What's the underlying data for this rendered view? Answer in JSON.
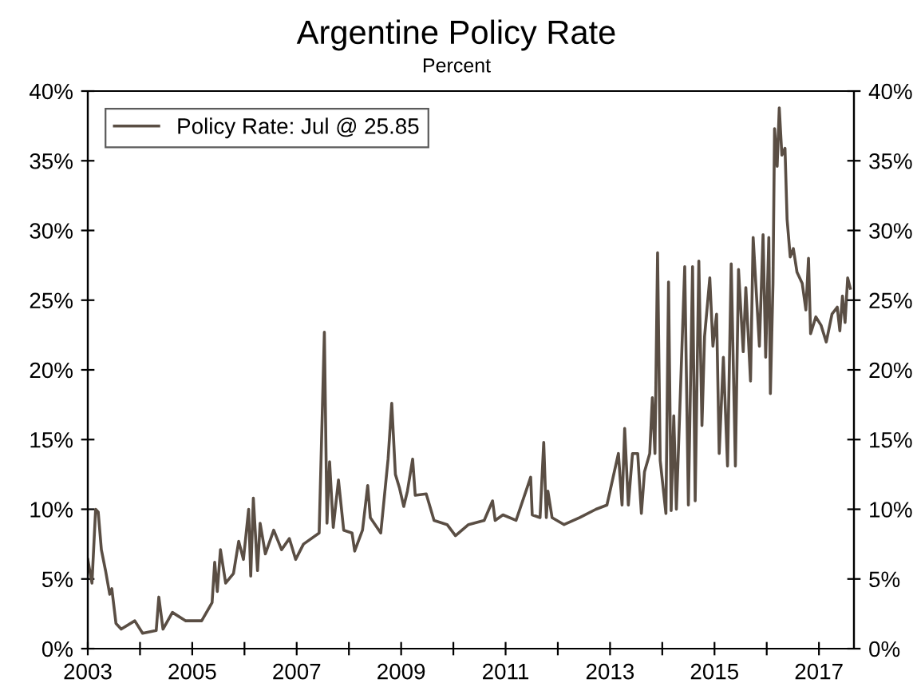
{
  "chart_data": {
    "type": "line",
    "title": "Argentine Policy Rate",
    "subtitle": "Percent",
    "x": [
      2003.0,
      2003.08,
      2003.15,
      2003.2,
      2003.26,
      2003.34,
      2003.42,
      2003.46,
      2003.54,
      2003.64,
      2003.9,
      2004.05,
      2004.31,
      2004.36,
      2004.44,
      2004.62,
      2004.87,
      2005.18,
      2005.38,
      2005.43,
      2005.48,
      2005.54,
      2005.64,
      2005.79,
      2005.89,
      2005.98,
      2006.08,
      2006.12,
      2006.17,
      2006.25,
      2006.3,
      2006.4,
      2006.56,
      2006.71,
      2006.86,
      2006.98,
      2007.13,
      2007.43,
      2007.53,
      2007.58,
      2007.63,
      2007.7,
      2007.8,
      2007.9,
      2008.06,
      2008.11,
      2008.26,
      2008.36,
      2008.41,
      2008.61,
      2008.75,
      2008.82,
      2008.89,
      2008.97,
      2009.05,
      2009.12,
      2009.22,
      2009.27,
      2009.48,
      2009.63,
      2009.88,
      2010.04,
      2010.29,
      2010.59,
      2010.75,
      2010.8,
      2010.95,
      2011.2,
      2011.48,
      2011.51,
      2011.66,
      2011.73,
      2011.78,
      2011.81,
      2011.89,
      2012.12,
      2012.42,
      2012.73,
      2012.94,
      2013.16,
      2013.23,
      2013.28,
      2013.35,
      2013.43,
      2013.53,
      2013.6,
      2013.66,
      2013.76,
      2013.81,
      2013.86,
      2013.91,
      2013.96,
      2014.07,
      2014.12,
      2014.17,
      2014.22,
      2014.27,
      2014.43,
      2014.5,
      2014.58,
      2014.63,
      2014.7,
      2014.76,
      2014.81,
      2014.91,
      2014.97,
      2015.04,
      2015.09,
      2015.17,
      2015.25,
      2015.32,
      2015.4,
      2015.46,
      2015.55,
      2015.6,
      2015.69,
      2015.74,
      2015.86,
      2015.93,
      2015.98,
      2016.04,
      2016.07,
      2016.12,
      2016.15,
      2016.2,
      2016.24,
      2016.29,
      2016.35,
      2016.39,
      2016.45,
      2016.51,
      2016.58,
      2016.68,
      2016.75,
      2016.8,
      2016.84,
      2016.94,
      2017.04,
      2017.14,
      2017.25,
      2017.35,
      2017.4,
      2017.45,
      2017.5,
      2017.55,
      2017.6
    ],
    "series": [
      {
        "name": "Policy Rate: Jul @ 25.85",
        "color": "#5a4e44",
        "values": [
          6.4,
          4.7,
          10,
          9.8,
          7.1,
          5.6,
          3.9,
          4.3,
          1.8,
          1.4,
          2,
          1.1,
          1.3,
          3.7,
          1.4,
          2.6,
          2,
          2,
          3.3,
          6.2,
          4.1,
          7.1,
          4.7,
          5.4,
          7.7,
          6.4,
          10,
          5.2,
          10.8,
          5.6,
          9,
          6.8,
          8.5,
          7.1,
          7.9,
          6.4,
          7.5,
          8.3,
          22.7,
          9,
          13.4,
          8.7,
          12.1,
          8.5,
          8.3,
          7,
          8.5,
          11.7,
          9.4,
          8.3,
          13.6,
          17.6,
          12.5,
          11.5,
          10.2,
          11.3,
          13.6,
          11,
          11.1,
          9.2,
          8.9,
          8.1,
          8.9,
          9.2,
          10.6,
          9.2,
          9.6,
          9.2,
          12.3,
          9.6,
          9.4,
          14.8,
          9.4,
          11.3,
          9.4,
          8.9,
          9.4,
          10,
          10.3,
          14,
          10.3,
          15.8,
          10.3,
          14,
          14,
          9.7,
          12.7,
          14,
          18,
          14,
          28.4,
          13.5,
          9.7,
          26.3,
          9.9,
          16.7,
          10,
          27.4,
          10.3,
          27.4,
          10.6,
          27.8,
          16,
          22.4,
          26.6,
          21.7,
          24,
          14,
          20.9,
          13.1,
          27.6,
          13.1,
          27.2,
          21.3,
          25.9,
          19.2,
          29.5,
          21.7,
          29.7,
          20.9,
          29.5,
          18.3,
          26.2,
          37.3,
          34.6,
          38.8,
          35.4,
          35.9,
          30.8,
          28.1,
          28.7,
          27,
          26.2,
          24.3,
          28,
          22.6,
          23.8,
          23.2,
          22,
          24,
          24.5,
          22.8,
          25.3,
          23.4,
          26.6,
          25.85
        ]
      }
    ],
    "xlim": [
      2003,
      2017.67
    ],
    "xticks": [
      2003,
      {
        "value": 2004,
        "label": null
      },
      2005,
      {
        "value": 2006,
        "label": null
      },
      2007,
      {
        "value": 2008,
        "label": null
      },
      2009,
      {
        "value": 2010,
        "label": null
      },
      2011,
      {
        "value": 2012,
        "label": null
      },
      2013,
      {
        "value": 2014,
        "label": null
      },
      2015,
      {
        "value": 2016,
        "label": null
      },
      2017
    ],
    "ylim": [
      0,
      40
    ],
    "yticks": [
      {
        "value": 0,
        "label": "0%"
      },
      {
        "value": 5,
        "label": "5%"
      },
      {
        "value": 10,
        "label": "10%"
      },
      {
        "value": 15,
        "label": "15%"
      },
      {
        "value": 20,
        "label": "20%"
      },
      {
        "value": 25,
        "label": "25%"
      },
      {
        "value": 30,
        "label": "30%"
      },
      {
        "value": 35,
        "label": "35%"
      },
      {
        "value": 40,
        "label": "40%"
      }
    ],
    "y2lim": [
      0,
      40
    ],
    "y2ticks": [
      {
        "value": 0,
        "label": "0%"
      },
      {
        "value": 5,
        "label": "5%"
      },
      {
        "value": 10,
        "label": "10%"
      },
      {
        "value": 15,
        "label": "15%"
      },
      {
        "value": 20,
        "label": "20%"
      },
      {
        "value": 25,
        "label": "25%"
      },
      {
        "value": 30,
        "label": "30%"
      },
      {
        "value": 35,
        "label": "35%"
      },
      {
        "value": 40,
        "label": "40%"
      }
    ],
    "grid": false,
    "legend": "top left",
    "marker": "none",
    "line_style": "solid"
  }
}
